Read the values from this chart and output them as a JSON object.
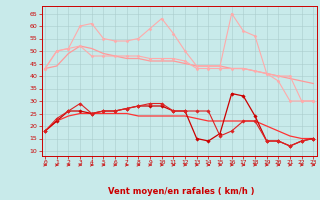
{
  "x": [
    0,
    1,
    2,
    3,
    4,
    5,
    6,
    7,
    8,
    9,
    10,
    11,
    12,
    13,
    14,
    15,
    16,
    17,
    18,
    19,
    20,
    21,
    22,
    23
  ],
  "bg_color": "#c8eaea",
  "grid_color": "#aacccc",
  "series": [
    {
      "y": [
        43,
        44,
        49,
        52,
        51,
        49,
        48,
        47,
        47,
        46,
        46,
        46,
        45,
        44,
        44,
        44,
        43,
        43,
        42,
        41,
        40,
        39,
        38,
        37
      ],
      "color": "#ff9999",
      "lw": 0.9,
      "marker": null,
      "ms": 0,
      "zorder": 2
    },
    {
      "y": [
        43,
        50,
        51,
        60,
        61,
        55,
        54,
        54,
        55,
        59,
        63,
        57,
        50,
        44,
        44,
        44,
        65,
        58,
        56,
        41,
        40,
        40,
        30,
        30
      ],
      "color": "#ffaaaa",
      "lw": 0.8,
      "marker": "D",
      "ms": 1.5,
      "zorder": 3
    },
    {
      "y": [
        43,
        50,
        51,
        52,
        48,
        48,
        48,
        48,
        48,
        47,
        47,
        47,
        46,
        43,
        43,
        43,
        43,
        43,
        42,
        41,
        38,
        30,
        30,
        30
      ],
      "color": "#ffaaaa",
      "lw": 0.8,
      "marker": "D",
      "ms": 1.5,
      "zorder": 3
    },
    {
      "y": [
        18,
        22,
        26,
        26,
        25,
        26,
        26,
        27,
        28,
        28,
        28,
        26,
        26,
        15,
        14,
        17,
        33,
        32,
        24,
        14,
        14,
        12,
        14,
        15
      ],
      "color": "#cc0000",
      "lw": 0.9,
      "marker": "D",
      "ms": 1.8,
      "zorder": 4
    },
    {
      "y": [
        18,
        22,
        24,
        25,
        25,
        25,
        25,
        25,
        24,
        24,
        24,
        24,
        24,
        23,
        22,
        22,
        22,
        22,
        22,
        20,
        18,
        16,
        15,
        15
      ],
      "color": "#ff3333",
      "lw": 0.9,
      "marker": null,
      "ms": 0,
      "zorder": 3
    },
    {
      "y": [
        18,
        23,
        26,
        29,
        25,
        26,
        26,
        27,
        28,
        29,
        29,
        26,
        26,
        26,
        26,
        16,
        18,
        22,
        22,
        14,
        14,
        12,
        14,
        15
      ],
      "color": "#dd2222",
      "lw": 0.8,
      "marker": "D",
      "ms": 1.8,
      "zorder": 4
    }
  ],
  "xlabel": "Vent moyen/en rafales ( km/h )",
  "ylabel_ticks": [
    10,
    15,
    20,
    25,
    30,
    35,
    40,
    45,
    50,
    55,
    60,
    65
  ],
  "ylim": [
    8,
    68
  ],
  "xlim": [
    -0.3,
    23.3
  ],
  "xlabel_color": "#cc0000",
  "tick_color": "#cc0000",
  "spine_color": "#cc0000"
}
